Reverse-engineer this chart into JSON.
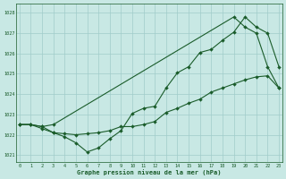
{
  "xlabel": "Graphe pression niveau de la mer (hPa)",
  "bg_color": "#c8e8e4",
  "grid_color": "#a0ccca",
  "line_color": "#1a5c2a",
  "xlim": [
    -0.3,
    23.3
  ],
  "ylim": [
    1020.65,
    1028.45
  ],
  "yticks": [
    1021,
    1022,
    1023,
    1024,
    1025,
    1026,
    1027,
    1028
  ],
  "xticks": [
    0,
    1,
    2,
    3,
    4,
    5,
    6,
    7,
    8,
    9,
    10,
    11,
    12,
    13,
    14,
    15,
    16,
    17,
    18,
    19,
    20,
    21,
    22,
    23
  ],
  "series_wavy": {
    "x": [
      0,
      1,
      2,
      3,
      4,
      5,
      6,
      7,
      8,
      9,
      10,
      11,
      12,
      13,
      14,
      15,
      16,
      17,
      18,
      19,
      20,
      21,
      22,
      23
    ],
    "y": [
      1022.5,
      1022.5,
      1022.3,
      1022.1,
      1021.9,
      1021.6,
      1021.15,
      1021.35,
      1021.8,
      1022.2,
      1023.05,
      1023.3,
      1023.4,
      1024.3,
      1025.05,
      1025.35,
      1026.05,
      1026.2,
      1026.65,
      1027.05,
      1027.8,
      1027.3,
      1027.0,
      1025.35
    ]
  },
  "series_smooth": {
    "x": [
      0,
      1,
      2,
      3,
      4,
      5,
      6,
      7,
      8,
      9,
      10,
      11,
      12,
      13,
      14,
      15,
      16,
      17,
      18,
      19,
      20,
      21,
      22,
      23
    ],
    "y": [
      1022.5,
      1022.5,
      1022.4,
      1022.1,
      1022.05,
      1022.0,
      1022.05,
      1022.1,
      1022.2,
      1022.4,
      1022.4,
      1022.5,
      1022.65,
      1023.1,
      1023.3,
      1023.55,
      1023.75,
      1024.1,
      1024.3,
      1024.5,
      1024.7,
      1024.85,
      1024.9,
      1024.3
    ]
  },
  "series_diagonal": {
    "x": [
      0,
      1,
      2,
      3,
      19,
      20,
      21,
      22,
      23
    ],
    "y": [
      1022.5,
      1022.5,
      1022.4,
      1022.5,
      1027.8,
      1027.3,
      1027.0,
      1025.35,
      1024.3
    ]
  }
}
